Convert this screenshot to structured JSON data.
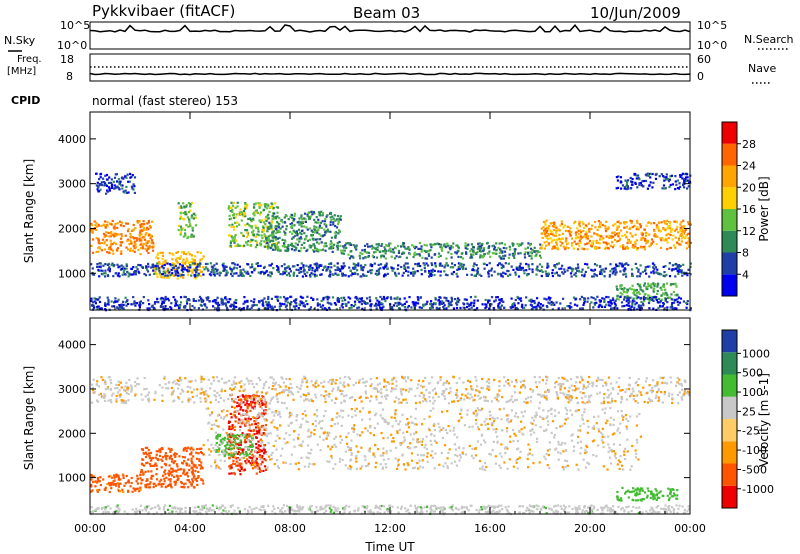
{
  "header": {
    "station": "Pykkvibaer (fitACF)",
    "beam": "Beam 03",
    "date": "10/Jun/2009"
  },
  "top_panels": {
    "nsky_label": "N.Sky",
    "nsearch_label": "N.Search",
    "freq_label_1": "Freq.",
    "freq_label_2": "[MHz]",
    "nave_label": "Nave",
    "cpid_label": "CPID",
    "cpid_text": "normal (fast stereo) 153",
    "noise_ticks": [
      "10^5",
      "10^0"
    ],
    "freq_ticks": [
      "18",
      "8"
    ],
    "nave_ticks": [
      "60",
      "0"
    ]
  },
  "colors": {
    "power": [
      "#0000ee",
      "#1f3fa6",
      "#2e8b57",
      "#60c040",
      "#ffd000",
      "#ffa500",
      "#ff6600",
      "#ee0000"
    ],
    "velocity": [
      "#ee0000",
      "#ff5500",
      "#ff9900",
      "#ffcc66",
      "#c8c8c8",
      "#44bb33",
      "#2e8b57",
      "#1f3fa6"
    ]
  },
  "chart_data": [
    {
      "type": "heatmap",
      "name": "power",
      "ylabel": "Slant Range [km]",
      "yticks": [
        "1000",
        "2000",
        "3000",
        "4000"
      ],
      "colorbar_label": "Power [dB]",
      "colorbar_ticks": [
        "4",
        "8",
        "12",
        "16",
        "20",
        "24",
        "28"
      ],
      "xticks": [
        "00:00",
        "04:00",
        "08:00",
        "12:00",
        "16:00",
        "20:00",
        "00:00"
      ],
      "xlim_hours": [
        0,
        24
      ],
      "ylim_km": [
        180,
        4600
      ],
      "color_range_db": [
        0,
        32
      ],
      "bands": [
        {
          "t0": 0.0,
          "t1": 2.5,
          "r0": 1450,
          "r1": 2200,
          "v": 24
        },
        {
          "t0": 0.2,
          "t1": 1.8,
          "r0": 2800,
          "r1": 3250,
          "v": 5
        },
        {
          "t0": 2.5,
          "t1": 4.5,
          "r0": 900,
          "r1": 1500,
          "v": 20
        },
        {
          "t0": 3.5,
          "t1": 4.2,
          "r0": 1800,
          "r1": 2600,
          "v": 14
        },
        {
          "t0": 5.5,
          "t1": 7.5,
          "r0": 1600,
          "r1": 2600,
          "v": 14
        },
        {
          "t0": 7.0,
          "t1": 10.0,
          "r0": 1500,
          "r1": 2400,
          "v": 10
        },
        {
          "t0": 10.0,
          "t1": 18.0,
          "r0": 1350,
          "r1": 1700,
          "v": 10
        },
        {
          "t0": 18.0,
          "t1": 24.0,
          "r0": 1550,
          "r1": 2200,
          "v": 22
        },
        {
          "t0": 21.0,
          "t1": 24.0,
          "r0": 2900,
          "r1": 3250,
          "v": 5
        },
        {
          "t0": 0.0,
          "t1": 24.0,
          "r0": 950,
          "r1": 1250,
          "v": 6
        },
        {
          "t0": 21.0,
          "t1": 23.5,
          "r0": 400,
          "r1": 800,
          "v": 12
        },
        {
          "t0": 0.0,
          "t1": 24.0,
          "r0": 200,
          "r1": 500,
          "v": 5
        }
      ]
    },
    {
      "type": "heatmap",
      "name": "velocity",
      "ylabel": "Slant Range [km]",
      "yticks": [
        "1000",
        "2000",
        "3000",
        "4000"
      ],
      "xlabel": "Time UT",
      "xticks": [
        "00:00",
        "04:00",
        "08:00",
        "12:00",
        "16:00",
        "20:00",
        "00:00"
      ],
      "xlim_hours": [
        0,
        24
      ],
      "ylim_km": [
        180,
        4600
      ],
      "colorbar_label": "Velocity [m s-1]",
      "colorbar_ticks": [
        "1000",
        "500",
        "100",
        "25",
        "-25",
        "-100",
        "-500",
        "-1000"
      ],
      "bands": [
        {
          "t0": 0.0,
          "t1": 2.0,
          "r0": 700,
          "r1": 1100,
          "v": -150
        },
        {
          "t0": 2.0,
          "t1": 4.5,
          "r0": 800,
          "r1": 1700,
          "v": -300
        },
        {
          "t0": 5.5,
          "t1": 7.0,
          "r0": 1100,
          "r1": 2900,
          "v": -500
        },
        {
          "t0": 5.0,
          "t1": 6.5,
          "r0": 1500,
          "r1": 2000,
          "v": 300
        },
        {
          "t0": 4.5,
          "t1": 22.0,
          "r0": 1200,
          "r1": 2600,
          "v": 0
        },
        {
          "t0": 0.0,
          "t1": 24.0,
          "r0": 2700,
          "r1": 3300,
          "v": 0
        },
        {
          "t0": 21.0,
          "t1": 23.5,
          "r0": 500,
          "r1": 800,
          "v": 300
        },
        {
          "t0": 0.0,
          "t1": 24.0,
          "r0": 200,
          "r1": 400,
          "v": 50
        }
      ]
    }
  ]
}
